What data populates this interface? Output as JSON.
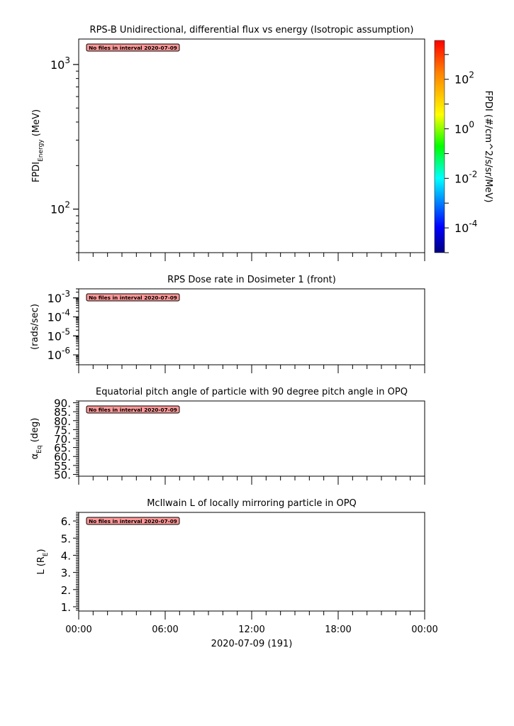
{
  "chart_data": [
    {
      "type": "heatmap",
      "title": "RPS-B  Unidirectional, differential flux vs energy (Isotropic assumption)",
      "ylabel": "FPDI",
      "ylabel_sub": "Energy",
      "ylabel_unit": " (MeV)",
      "yscale": "log",
      "ylim": [
        50,
        1500
      ],
      "yticks": [
        {
          "v": 100,
          "base": "10",
          "exp": "2"
        },
        {
          "v": 1000,
          "base": "10",
          "exp": "3"
        }
      ],
      "colorbar": {
        "label": "FPDI (#/cm^2/s/sr/MeV)",
        "scale": "log",
        "range": [
          1e-05,
          3700
        ],
        "colormap": "rainbow",
        "ticks": [
          {
            "v": 0.0001,
            "base": "10",
            "exp": "-4"
          },
          {
            "v": 0.01,
            "base": "10",
            "exp": "-2"
          },
          {
            "v": 1,
            "base": "10",
            "exp": "0"
          },
          {
            "v": 100,
            "base": "10",
            "exp": "2"
          }
        ]
      },
      "annotation": "No files in interval 2020-07-09",
      "values": []
    },
    {
      "type": "line",
      "title": "RPS  Dose rate in Dosimeter 1 (front)",
      "ylabel": "(rads/sec)",
      "yscale": "log",
      "ylim": [
        3e-07,
        0.003
      ],
      "yticks": [
        {
          "v": 1e-06,
          "base": "10",
          "exp": "-6"
        },
        {
          "v": 1e-05,
          "base": "10",
          "exp": "-5"
        },
        {
          "v": 0.0001,
          "base": "10",
          "exp": "-4"
        },
        {
          "v": 0.001,
          "base": "10",
          "exp": "-3"
        }
      ],
      "annotation": "No files in interval 2020-07-09",
      "values": []
    },
    {
      "type": "line",
      "title": "Equatorial pitch angle of particle with 90 degree pitch angle in OPQ",
      "ylabel": "α",
      "ylabel_sub": "Eq",
      "ylabel_unit": " (deg)",
      "yscale": "linear",
      "ylim": [
        49,
        91
      ],
      "yticks": [
        {
          "v": 50,
          "label": "50."
        },
        {
          "v": 55,
          "label": "55."
        },
        {
          "v": 60,
          "label": "60."
        },
        {
          "v": 65,
          "label": "65."
        },
        {
          "v": 70,
          "label": "70."
        },
        {
          "v": 75,
          "label": "75."
        },
        {
          "v": 80,
          "label": "80."
        },
        {
          "v": 85,
          "label": "85."
        },
        {
          "v": 90,
          "label": "90."
        }
      ],
      "minor_step": 1,
      "annotation": "No files in interval 2020-07-09",
      "values": []
    },
    {
      "type": "line",
      "title": "McIlwain L of locally mirroring particle in OPQ",
      "ylabel": "L (R",
      "ylabel_sub": "E",
      "ylabel_unit": ")",
      "yscale": "linear",
      "ylim": [
        0.75,
        6.5
      ],
      "yticks": [
        {
          "v": 1,
          "label": "1."
        },
        {
          "v": 2,
          "label": "2."
        },
        {
          "v": 3,
          "label": "3."
        },
        {
          "v": 4,
          "label": "4."
        },
        {
          "v": 5,
          "label": "5."
        },
        {
          "v": 6,
          "label": "6."
        }
      ],
      "minor_step": 0.1,
      "annotation": "No files in interval 2020-07-09",
      "values": []
    }
  ],
  "xaxis": {
    "range_hours": [
      0,
      24
    ],
    "major_step_hours": 6,
    "minor_step_hours": 1,
    "tick_labels": [
      "00:00",
      "06:00",
      "12:00",
      "18:00",
      "00:00"
    ],
    "label": "2020-07-09 (191)"
  },
  "colors": {
    "annotation_fill": "#ff9999",
    "axis": "#000000"
  }
}
